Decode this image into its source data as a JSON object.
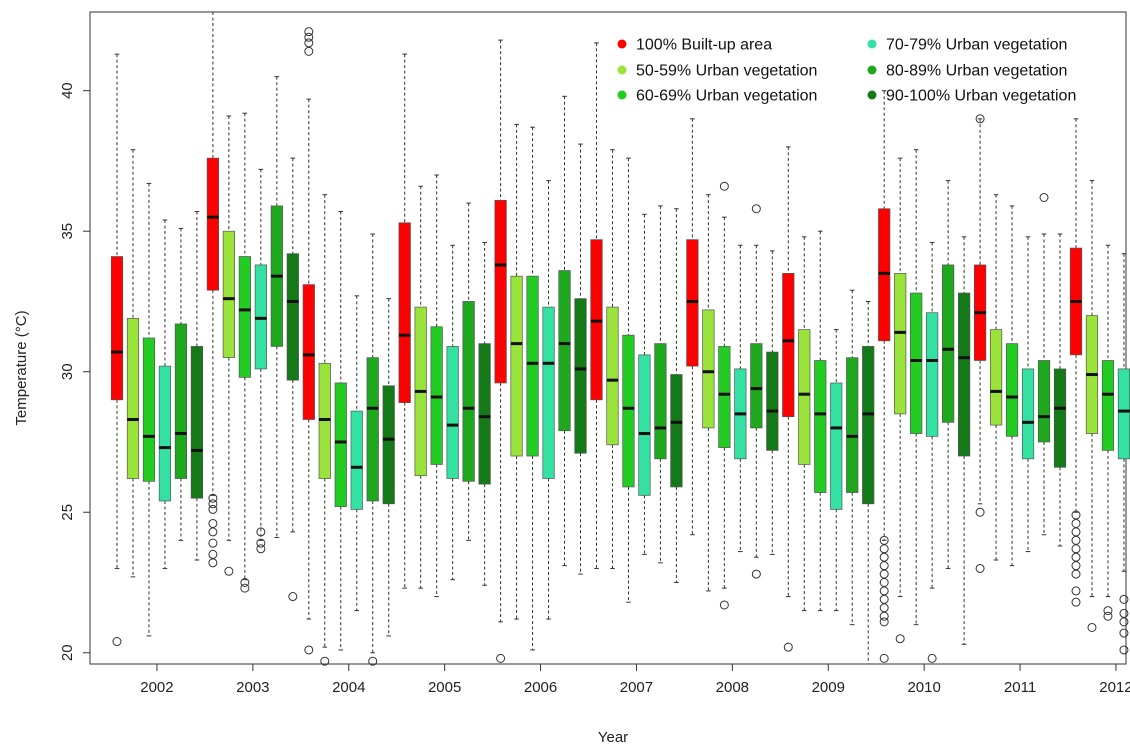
{
  "chart_data": {
    "type": "boxplot",
    "title": "",
    "xlabel": "Year",
    "ylabel": "Temperature (°C)",
    "ylim": [
      19.6,
      42.8
    ],
    "yticks": [
      20,
      25,
      30,
      35,
      40
    ],
    "grid": false,
    "legend_position": "top-right",
    "categories": [
      "2002",
      "2003",
      "2004",
      "2005",
      "2006",
      "2007",
      "2008",
      "2009",
      "2010",
      "2011",
      "2012"
    ],
    "series": [
      {
        "name": "100% Built-up area",
        "color": "#ff0000",
        "boxes": [
          {
            "whislo": 23.0,
            "q1": 29.0,
            "med": 30.7,
            "q3": 34.1,
            "whishi": 41.3,
            "fliers": [
              20.4
            ]
          },
          {
            "whislo": 25.6,
            "q1": 32.9,
            "med": 35.5,
            "q3": 37.6,
            "whishi": 42.8,
            "fliers": [
              25.5,
              25.3,
              25.1,
              24.6,
              24.3,
              23.9,
              23.5,
              23.2
            ]
          },
          {
            "whislo": 21.2,
            "q1": 28.3,
            "med": 30.6,
            "q3": 33.1,
            "whishi": 39.7,
            "fliers": [
              42.1,
              41.9,
              41.7,
              41.4,
              20.1
            ]
          },
          {
            "whislo": 22.3,
            "q1": 28.9,
            "med": 31.3,
            "q3": 35.3,
            "whishi": 41.3,
            "fliers": []
          },
          {
            "whislo": 21.1,
            "q1": 29.6,
            "med": 33.8,
            "q3": 36.1,
            "whishi": 41.8,
            "fliers": [
              19.8
            ]
          },
          {
            "whislo": 23.0,
            "q1": 29.0,
            "med": 31.8,
            "q3": 34.7,
            "whishi": 41.7,
            "fliers": []
          },
          {
            "whislo": 24.2,
            "q1": 30.2,
            "med": 32.5,
            "q3": 34.7,
            "whishi": 39.0,
            "fliers": []
          },
          {
            "whislo": 22.0,
            "q1": 28.4,
            "med": 31.1,
            "q3": 33.5,
            "whishi": 38.0,
            "fliers": [
              20.2
            ]
          },
          {
            "whislo": 24.0,
            "q1": 31.1,
            "med": 33.5,
            "q3": 35.8,
            "whishi": 40.0,
            "fliers": [
              24.0,
              23.7,
              23.4,
              23.1,
              22.8,
              22.5,
              22.2,
              21.9,
              21.6,
              21.3,
              21.1,
              19.8
            ]
          },
          {
            "whislo": 25.3,
            "q1": 30.4,
            "med": 32.1,
            "q3": 33.8,
            "whishi": 39.0,
            "fliers": [
              39.0,
              25.0,
              23.0
            ]
          },
          {
            "whislo": 25.0,
            "q1": 30.6,
            "med": 32.5,
            "q3": 34.4,
            "whishi": 39.0,
            "fliers": [
              24.9,
              24.6,
              24.3,
              24.0,
              23.7,
              23.4,
              23.1,
              22.8,
              22.2,
              21.8
            ]
          }
        ]
      },
      {
        "name": "50-59% Urban vegetation",
        "color": "#99e33a",
        "boxes": [
          {
            "whislo": 22.7,
            "q1": 26.2,
            "med": 28.3,
            "q3": 31.9,
            "whishi": 37.9,
            "fliers": []
          },
          {
            "whislo": 24.0,
            "q1": 30.5,
            "med": 32.6,
            "q3": 35.0,
            "whishi": 39.1,
            "fliers": [
              22.9
            ]
          },
          {
            "whislo": 20.2,
            "q1": 26.2,
            "med": 28.3,
            "q3": 30.3,
            "whishi": 36.3,
            "fliers": [
              19.7
            ]
          },
          {
            "whislo": 22.3,
            "q1": 26.3,
            "med": 29.3,
            "q3": 32.3,
            "whishi": 36.6,
            "fliers": []
          },
          {
            "whislo": 21.2,
            "q1": 27.0,
            "med": 31.0,
            "q3": 33.4,
            "whishi": 38.8,
            "fliers": []
          },
          {
            "whislo": 23.0,
            "q1": 27.4,
            "med": 29.7,
            "q3": 32.3,
            "whishi": 37.9,
            "fliers": []
          },
          {
            "whislo": 22.2,
            "q1": 28.0,
            "med": 30.0,
            "q3": 32.2,
            "whishi": 36.3,
            "fliers": []
          },
          {
            "whislo": 21.5,
            "q1": 26.7,
            "med": 29.2,
            "q3": 31.5,
            "whishi": 34.8,
            "fliers": []
          },
          {
            "whislo": 22.0,
            "q1": 28.5,
            "med": 31.4,
            "q3": 33.5,
            "whishi": 37.6,
            "fliers": [
              20.5
            ]
          },
          {
            "whislo": 23.3,
            "q1": 28.1,
            "med": 29.3,
            "q3": 31.5,
            "whishi": 36.3,
            "fliers": []
          },
          {
            "whislo": 22.0,
            "q1": 27.8,
            "med": 29.9,
            "q3": 32.0,
            "whishi": 36.8,
            "fliers": [
              20.9
            ]
          }
        ]
      },
      {
        "name": "60-69% Urban vegetation",
        "color": "#22cc22",
        "boxes": [
          {
            "whislo": 20.6,
            "q1": 26.1,
            "med": 27.7,
            "q3": 31.2,
            "whishi": 36.7,
            "fliers": []
          },
          {
            "whislo": 22.6,
            "q1": 29.8,
            "med": 32.2,
            "q3": 34.1,
            "whishi": 39.2,
            "fliers": [
              22.5,
              22.3
            ]
          },
          {
            "whislo": 20.1,
            "q1": 25.2,
            "med": 27.5,
            "q3": 29.6,
            "whishi": 35.7,
            "fliers": []
          },
          {
            "whislo": 22.0,
            "q1": 26.7,
            "med": 29.1,
            "q3": 31.6,
            "whishi": 37.0,
            "fliers": []
          },
          {
            "whislo": 20.1,
            "q1": 27.0,
            "med": 30.3,
            "q3": 33.4,
            "whishi": 38.7,
            "fliers": []
          },
          {
            "whislo": 21.8,
            "q1": 25.9,
            "med": 28.7,
            "q3": 31.3,
            "whishi": 37.6,
            "fliers": []
          },
          {
            "whislo": 22.3,
            "q1": 27.3,
            "med": 29.2,
            "q3": 30.9,
            "whishi": 35.5,
            "fliers": [
              36.6,
              21.7
            ]
          },
          {
            "whislo": 21.5,
            "q1": 25.7,
            "med": 28.5,
            "q3": 30.4,
            "whishi": 35.0,
            "fliers": []
          },
          {
            "whislo": 21.0,
            "q1": 27.8,
            "med": 30.4,
            "q3": 32.8,
            "whishi": 37.9,
            "fliers": []
          },
          {
            "whislo": 23.1,
            "q1": 27.7,
            "med": 29.1,
            "q3": 31.0,
            "whishi": 35.9,
            "fliers": []
          },
          {
            "whislo": 22.0,
            "q1": 27.2,
            "med": 29.2,
            "q3": 30.4,
            "whishi": 34.5,
            "fliers": [
              21.5,
              21.3
            ]
          }
        ]
      },
      {
        "name": "70-79% Urban vegetation",
        "color": "#33e2a2",
        "boxes": [
          {
            "whislo": 23.0,
            "q1": 25.4,
            "med": 27.3,
            "q3": 30.2,
            "whishi": 35.4,
            "fliers": []
          },
          {
            "whislo": 24.0,
            "q1": 30.1,
            "med": 31.9,
            "q3": 33.8,
            "whishi": 37.2,
            "fliers": [
              24.3,
              23.9,
              23.7
            ]
          },
          {
            "whislo": 21.5,
            "q1": 25.1,
            "med": 26.6,
            "q3": 28.6,
            "whishi": 32.7,
            "fliers": []
          },
          {
            "whislo": 22.6,
            "q1": 26.2,
            "med": 28.1,
            "q3": 30.9,
            "whishi": 34.5,
            "fliers": []
          },
          {
            "whislo": 21.2,
            "q1": 26.2,
            "med": 30.3,
            "q3": 32.3,
            "whishi": 36.8,
            "fliers": []
          },
          {
            "whislo": 23.5,
            "q1": 25.6,
            "med": 27.8,
            "q3": 30.6,
            "whishi": 35.6,
            "fliers": []
          },
          {
            "whislo": 23.6,
            "q1": 26.9,
            "med": 28.5,
            "q3": 30.1,
            "whishi": 34.5,
            "fliers": []
          },
          {
            "whislo": 21.5,
            "q1": 25.1,
            "med": 28.0,
            "q3": 29.6,
            "whishi": 31.5,
            "fliers": []
          },
          {
            "whislo": 22.3,
            "q1": 27.7,
            "med": 30.4,
            "q3": 32.1,
            "whishi": 34.6,
            "fliers": [
              19.8
            ]
          },
          {
            "whislo": 23.6,
            "q1": 26.9,
            "med": 28.2,
            "q3": 30.1,
            "whishi": 34.8,
            "fliers": []
          },
          {
            "whislo": 22.9,
            "q1": 26.9,
            "med": 28.6,
            "q3": 30.1,
            "whishi": 34.2,
            "fliers": [
              21.9,
              21.4,
              21.1,
              20.7,
              20.1
            ]
          }
        ]
      },
      {
        "name": "80-89% Urban vegetation",
        "color": "#1ea81e",
        "boxes": [
          {
            "whislo": 24.0,
            "q1": 26.2,
            "med": 27.8,
            "q3": 31.7,
            "whishi": 35.1,
            "fliers": []
          },
          {
            "whislo": 24.1,
            "q1": 30.9,
            "med": 33.4,
            "q3": 35.9,
            "whishi": 40.5,
            "fliers": []
          },
          {
            "whislo": 20.0,
            "q1": 25.4,
            "med": 28.7,
            "q3": 30.5,
            "whishi": 34.9,
            "fliers": [
              19.7
            ]
          },
          {
            "whislo": 24.0,
            "q1": 26.1,
            "med": 28.7,
            "q3": 32.5,
            "whishi": 36.0,
            "fliers": []
          },
          {
            "whislo": 23.1,
            "q1": 27.9,
            "med": 31.0,
            "q3": 33.6,
            "whishi": 39.8,
            "fliers": []
          },
          {
            "whislo": 23.2,
            "q1": 26.9,
            "med": 28.0,
            "q3": 31.0,
            "whishi": 35.9,
            "fliers": []
          },
          {
            "whislo": 23.4,
            "q1": 28.0,
            "med": 29.4,
            "q3": 31.0,
            "whishi": 34.5,
            "fliers": [
              35.8,
              22.8
            ]
          },
          {
            "whislo": 21.0,
            "q1": 25.7,
            "med": 27.7,
            "q3": 30.5,
            "whishi": 32.9,
            "fliers": []
          },
          {
            "whislo": 23.0,
            "q1": 28.2,
            "med": 30.8,
            "q3": 33.8,
            "whishi": 36.8,
            "fliers": []
          },
          {
            "whislo": 24.2,
            "q1": 27.5,
            "med": 28.4,
            "q3": 30.4,
            "whishi": 34.9,
            "fliers": [
              36.2
            ]
          },
          {
            "whislo": 23.9,
            "q1": 27.3,
            "med": 29.0,
            "q3": 30.7,
            "whishi": 35.3,
            "fliers": [
              35.7,
              21.8,
              21.3
            ]
          }
        ]
      },
      {
        "name": "90-100% Urban vegetation",
        "color": "#137a17",
        "boxes": [
          {
            "whislo": 23.3,
            "q1": 25.5,
            "med": 27.2,
            "q3": 30.9,
            "whishi": 35.7,
            "fliers": []
          },
          {
            "whislo": 24.3,
            "q1": 29.7,
            "med": 32.5,
            "q3": 34.2,
            "whishi": 37.6,
            "fliers": [
              22.0
            ]
          },
          {
            "whislo": 20.6,
            "q1": 25.3,
            "med": 27.6,
            "q3": 29.5,
            "whishi": 32.6,
            "fliers": []
          },
          {
            "whislo": 22.4,
            "q1": 26.0,
            "med": 28.4,
            "q3": 31.0,
            "whishi": 34.6,
            "fliers": []
          },
          {
            "whislo": 22.8,
            "q1": 27.1,
            "med": 30.1,
            "q3": 32.6,
            "whishi": 38.1,
            "fliers": []
          },
          {
            "whislo": 22.5,
            "q1": 25.9,
            "med": 28.2,
            "q3": 29.9,
            "whishi": 35.8,
            "fliers": []
          },
          {
            "whislo": 23.5,
            "q1": 27.2,
            "med": 28.6,
            "q3": 30.7,
            "whishi": 34.3,
            "fliers": []
          },
          {
            "whislo": 19.6,
            "q1": 25.3,
            "med": 28.5,
            "q3": 30.9,
            "whishi": 32.5,
            "fliers": []
          },
          {
            "whislo": 20.3,
            "q1": 27.0,
            "med": 30.5,
            "q3": 32.8,
            "whishi": 34.8,
            "fliers": []
          },
          {
            "whislo": 23.8,
            "q1": 26.6,
            "med": 28.7,
            "q3": 30.1,
            "whishi": 34.9,
            "fliers": []
          },
          {
            "whislo": 23.0,
            "q1": 26.9,
            "med": 28.7,
            "q3": 30.7,
            "whishi": 32.8,
            "fliers": [
              20.9,
              20.2
            ]
          }
        ]
      }
    ]
  }
}
